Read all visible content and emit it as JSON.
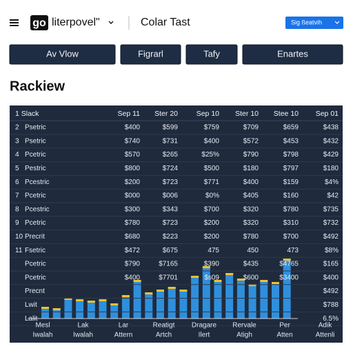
{
  "header": {
    "logo": "go",
    "brand": "literpovel\"",
    "title": "Colar Tast",
    "button": "Sig ßeatvih"
  },
  "tabs": [
    "Av Vlow",
    "Figrarl",
    "Tafy",
    "Enartes"
  ],
  "heading": "Rackiew",
  "table": {
    "header": [
      "1 Slack",
      "Sep 11",
      "Ster 20",
      "Sep 10",
      "Ster 10",
      "Stee 10",
      "Sep 01"
    ],
    "rows": [
      {
        "n": "2",
        "label": "Psetric",
        "cells": [
          "$400",
          "$599",
          "$759",
          "$709",
          "$659",
          "$438"
        ]
      },
      {
        "n": "3",
        "label": "Psetric",
        "cells": [
          "$740",
          "$731",
          "$400",
          "$572",
          "$453",
          "$432"
        ]
      },
      {
        "n": "4",
        "label": "Pcetric",
        "cells": [
          "$570",
          "$265",
          "$25%",
          "$790",
          "$798",
          "$429"
        ]
      },
      {
        "n": "5",
        "label": "Pestric",
        "cells": [
          "$800",
          "$724",
          "$500",
          "$180",
          "$797",
          "$180"
        ]
      },
      {
        "n": "6",
        "label": "Pcestric",
        "cells": [
          "$200",
          "$723",
          "$771",
          "$400",
          "$159",
          "$4%"
        ]
      },
      {
        "n": "7",
        "label": "Pcetric",
        "cells": [
          "$000",
          "$006",
          "$0%",
          "$405",
          "$160",
          "$42"
        ]
      },
      {
        "n": "8",
        "label": "Pcestric",
        "cells": [
          "$300",
          "$343",
          "$700",
          "$320",
          "$780",
          "$735"
        ]
      },
      {
        "n": "9",
        "label": "Pcetric",
        "cells": [
          "$780",
          "$723",
          "$200",
          "$320",
          "$310",
          "$732"
        ]
      },
      {
        "n": "10",
        "label": "Precrit",
        "cells": [
          "$680",
          "$223",
          "$200",
          "$780",
          "$700",
          "$492"
        ]
      },
      {
        "n": "11",
        "label": "Fsetric",
        "cells": [
          "$472",
          "$675",
          "475",
          "450",
          "473",
          "$8%"
        ],
        "red": [
          2,
          4
        ]
      },
      {
        "label": "Pcetric",
        "cells": [
          "$790",
          "$7165",
          "$390",
          "$435",
          "$4765",
          "$165"
        ]
      },
      {
        "label": "Pcetric",
        "cells": [
          "$400",
          "$7701",
          "$s09",
          "$600",
          "$3400",
          "$400"
        ],
        "red": [
          2
        ]
      },
      {
        "label": "Precnt",
        "cells": [
          "",
          "",
          "",
          "",
          "",
          "$492"
        ]
      },
      {
        "label": "Lwit",
        "cells": [
          "",
          "",
          "",
          "",
          "",
          "$788"
        ]
      },
      {
        "label": "Lalit",
        "cells": [
          "",
          "",
          "",
          "",
          "",
          "6.5%"
        ]
      }
    ],
    "footer": [
      [
        "Mesl",
        "Iwalah"
      ],
      [
        "Lak",
        "Iwalah"
      ],
      [
        "Lar",
        "Attern"
      ],
      [
        "Reatigt",
        "Artch"
      ],
      [
        "Dragare",
        "Ilert"
      ],
      [
        "Rervale",
        "Atigh"
      ],
      [
        "Per",
        "Atten"
      ],
      [
        "Adik",
        "Attenli"
      ]
    ]
  },
  "chart": {
    "values": [
      17,
      15,
      30,
      28,
      26,
      28,
      22,
      34,
      56,
      38,
      42,
      46,
      42,
      62,
      76,
      56,
      66,
      58,
      50,
      56,
      53,
      87
    ],
    "color": "#2f8fdc",
    "cap_color": "#f2c230"
  }
}
